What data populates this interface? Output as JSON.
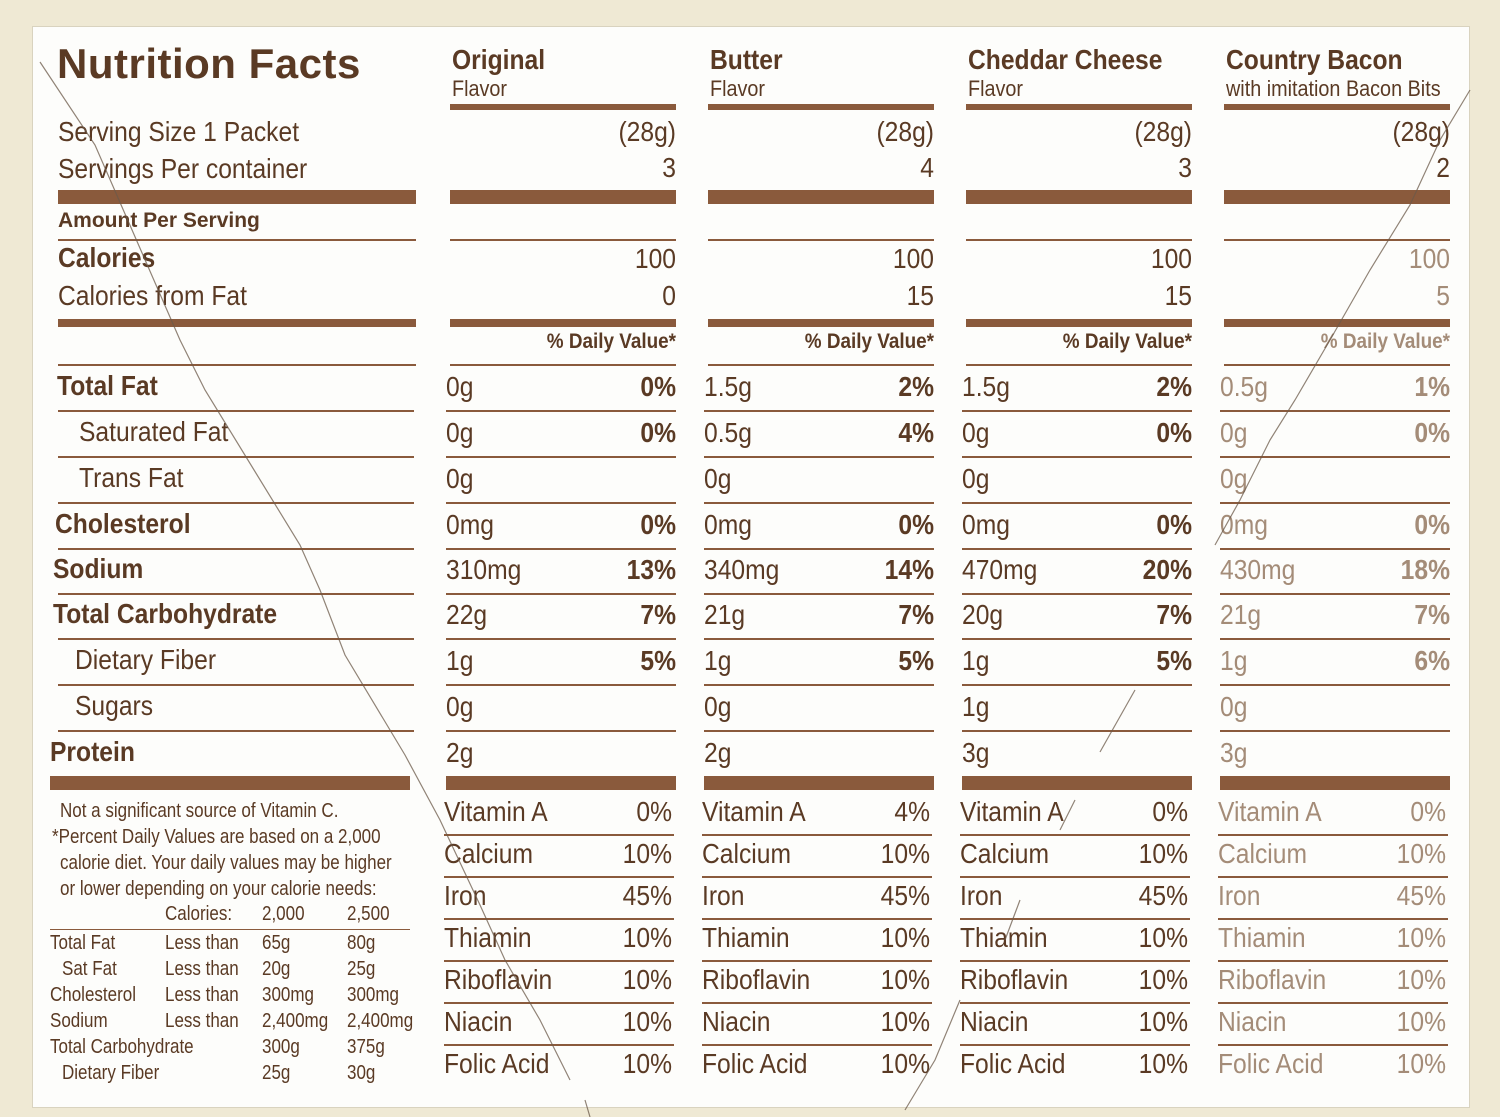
{
  "title": "Nutrition Facts",
  "label": {
    "serving_size": "Serving Size 1 Packet",
    "servings_per_container": "Servings Per container",
    "amount_per_serving": "Amount Per Serving",
    "calories": "Calories",
    "calories_from_fat": "Calories from Fat",
    "daily_value_header": "% Daily Value*"
  },
  "columns": [
    {
      "name": "Original",
      "sub": "Flavor",
      "serving_size": "(28g)",
      "servings": "3",
      "calories": "100",
      "calories_fat": "0",
      "total_fat": "0g",
      "total_fat_dv": "0%",
      "sat_fat": "0g",
      "sat_fat_dv": "0%",
      "trans_fat": "0g",
      "cholesterol": "0mg",
      "cholesterol_dv": "0%",
      "sodium": "310mg",
      "sodium_dv": "13%",
      "carb": "22g",
      "carb_dv": "7%",
      "fiber": "1g",
      "fiber_dv": "5%",
      "sugars": "0g",
      "protein": "2g",
      "vitamin_a": "0%",
      "calcium": "10%",
      "iron": "45%",
      "thiamin": "10%",
      "riboflavin": "10%",
      "niacin": "10%",
      "folic_acid": "10%"
    },
    {
      "name": "Butter",
      "sub": "Flavor",
      "serving_size": "(28g)",
      "servings": "4",
      "calories": "100",
      "calories_fat": "15",
      "total_fat": "1.5g",
      "total_fat_dv": "2%",
      "sat_fat": "0.5g",
      "sat_fat_dv": "4%",
      "trans_fat": "0g",
      "cholesterol": "0mg",
      "cholesterol_dv": "0%",
      "sodium": "340mg",
      "sodium_dv": "14%",
      "carb": "21g",
      "carb_dv": "7%",
      "fiber": "1g",
      "fiber_dv": "5%",
      "sugars": "0g",
      "protein": "2g",
      "vitamin_a": "4%",
      "calcium": "10%",
      "iron": "45%",
      "thiamin": "10%",
      "riboflavin": "10%",
      "niacin": "10%",
      "folic_acid": "10%"
    },
    {
      "name": "Cheddar Cheese",
      "sub": "Flavor",
      "serving_size": "(28g)",
      "servings": "3",
      "calories": "100",
      "calories_fat": "15",
      "total_fat": "1.5g",
      "total_fat_dv": "2%",
      "sat_fat": "0g",
      "sat_fat_dv": "0%",
      "trans_fat": "0g",
      "cholesterol": "0mg",
      "cholesterol_dv": "0%",
      "sodium": "470mg",
      "sodium_dv": "20%",
      "carb": "20g",
      "carb_dv": "7%",
      "fiber": "1g",
      "fiber_dv": "5%",
      "sugars": "1g",
      "protein": "3g",
      "vitamin_a": "0%",
      "calcium": "10%",
      "iron": "45%",
      "thiamin": "10%",
      "riboflavin": "10%",
      "niacin": "10%",
      "folic_acid": "10%"
    },
    {
      "name": "Country Bacon",
      "sub": "with imitation Bacon Bits",
      "serving_size": "(28g)",
      "servings": "2",
      "calories": "100",
      "calories_fat": "5",
      "total_fat": "0.5g",
      "total_fat_dv": "1%",
      "sat_fat": "0g",
      "sat_fat_dv": "0%",
      "trans_fat": "0g",
      "cholesterol": "0mg",
      "cholesterol_dv": "0%",
      "sodium": "430mg",
      "sodium_dv": "18%",
      "carb": "21g",
      "carb_dv": "7%",
      "fiber": "1g",
      "fiber_dv": "6%",
      "sugars": "0g",
      "protein": "3g",
      "vitamin_a": "0%",
      "calcium": "10%",
      "iron": "45%",
      "thiamin": "10%",
      "riboflavin": "10%",
      "niacin": "10%",
      "folic_acid": "10%"
    }
  ],
  "nutrients": {
    "total_fat": "Total Fat",
    "sat_fat": "Saturated Fat",
    "trans_fat": "Trans Fat",
    "cholesterol": "Cholesterol",
    "sodium": "Sodium",
    "carb": "Total Carbohydrate",
    "fiber": "Dietary Fiber",
    "sugars": "Sugars",
    "protein": "Protein"
  },
  "vitamins": {
    "vitamin_a": "Vitamin A",
    "calcium": "Calcium",
    "iron": "Iron",
    "thiamin": "Thiamin",
    "riboflavin": "Riboflavin",
    "niacin": "Niacin",
    "folic_acid": "Folic Acid"
  },
  "footnote": {
    "vitamin_c": "Not a significant source of Vitamin C.",
    "line1": "*Percent Daily Values are based on a 2,000",
    "line2": "calorie diet. Your daily values may be higher",
    "line3": "or lower depending on your calorie needs:",
    "calories_label": "Calories:",
    "cal_2000": "2,000",
    "cal_2500": "2,500",
    "rows": [
      {
        "name": "Total Fat",
        "qual": "Less than",
        "a": "65g",
        "b": "80g"
      },
      {
        "name": "Sat Fat",
        "qual": "Less than",
        "a": "20g",
        "b": "25g"
      },
      {
        "name": "Cholesterol",
        "qual": "Less than",
        "a": "300mg",
        "b": "300mg"
      },
      {
        "name": "Sodium",
        "qual": "Less than",
        "a": "2,400mg",
        "b": "2,400mg"
      },
      {
        "name": "Total Carbohydrate",
        "qual": "",
        "a": "300g",
        "b": "375g"
      },
      {
        "name": "Dietary Fiber",
        "qual": "",
        "a": "25g",
        "b": "30g"
      }
    ]
  }
}
